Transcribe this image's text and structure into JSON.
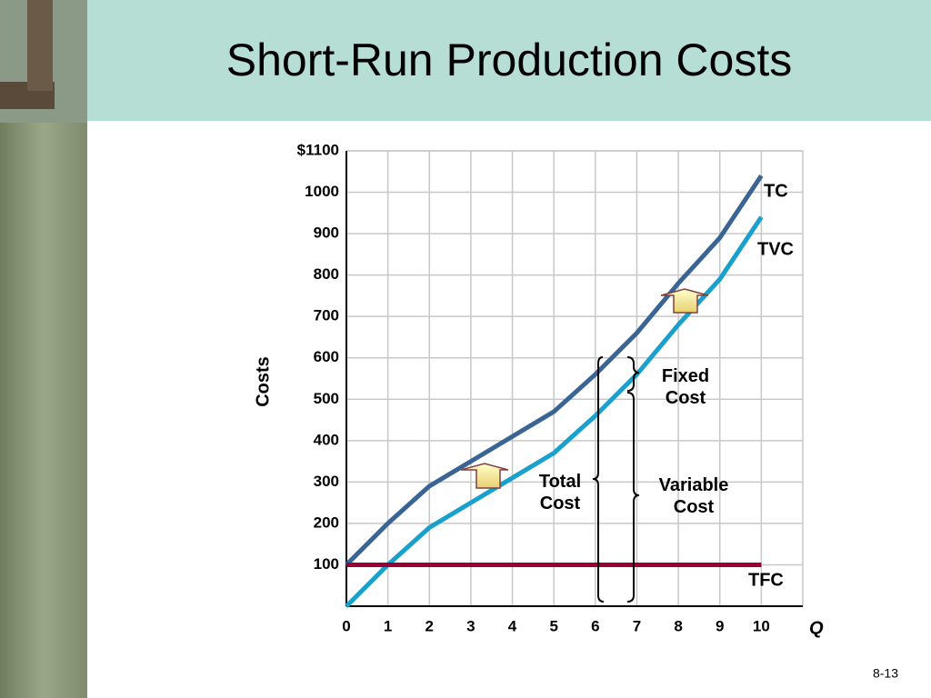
{
  "slide_number": "8-13",
  "chart_data": {
    "type": "line",
    "title": "Short-Run Production Costs",
    "x_label": "Q",
    "y_label": "Costs",
    "x": [
      0,
      1,
      2,
      3,
      4,
      5,
      6,
      7,
      8,
      9,
      10
    ],
    "series": [
      {
        "name": "TC",
        "color": "#3a6494",
        "values": [
          100,
          200,
          290,
          350,
          410,
          470,
          560,
          660,
          780,
          890,
          1040
        ]
      },
      {
        "name": "TVC",
        "color": "#1aa0cc",
        "values": [
          0,
          100,
          190,
          250,
          310,
          370,
          460,
          560,
          680,
          790,
          940
        ]
      },
      {
        "name": "TFC",
        "color": "#990033",
        "values": [
          100,
          100,
          100,
          100,
          100,
          100,
          100,
          100,
          100,
          100,
          100
        ]
      }
    ],
    "xlim": [
      0,
      11
    ],
    "xticks": [
      0,
      1,
      2,
      3,
      4,
      5,
      6,
      7,
      8,
      9,
      10
    ],
    "ylim": [
      0,
      1100
    ],
    "yticks": [
      100,
      200,
      300,
      400,
      500,
      600,
      700,
      800,
      900,
      1000,
      {
        "value": 1100,
        "label": "$1100"
      }
    ],
    "grid": true,
    "annotations": [
      "Total Cost",
      "Fixed Cost",
      "Variable Cost"
    ]
  }
}
